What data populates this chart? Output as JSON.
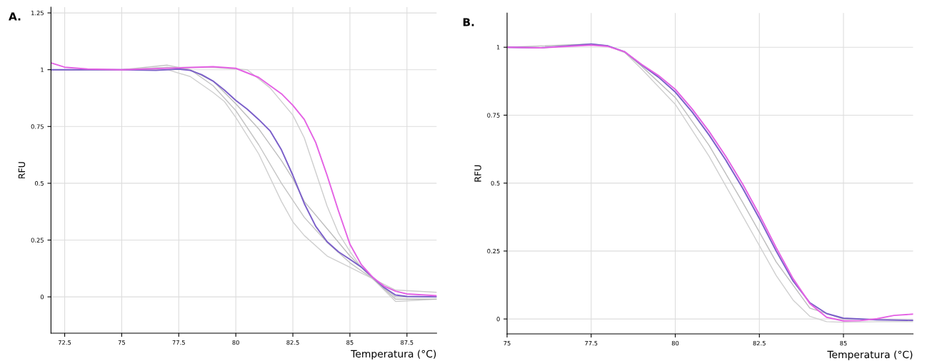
{
  "chart_data": [
    {
      "type": "line",
      "xlabel": "Temperatura (°C)",
      "ylabel": "RFU",
      "annotations": [
        "A."
      ],
      "grid": true,
      "marker": "none",
      "line_style": "solid",
      "legend": false,
      "xlim": [
        71.9,
        88.8
      ],
      "ylim": [
        -0.16,
        1.275
      ],
      "xticks": [
        72.5,
        75,
        77.5,
        80,
        82.5,
        85,
        87.5
      ],
      "yticks": [
        0,
        0.25,
        0.5,
        0.75,
        1,
        1.25
      ],
      "series": [
        {
          "color": "#cfcfcf",
          "x": [
            71.9,
            73,
            75,
            77,
            78,
            79,
            79.5,
            80,
            81,
            82,
            82.5,
            83,
            84,
            85,
            86,
            87,
            88.8
          ],
          "values": [
            1.0,
            1.0,
            1.0,
            1.0,
            0.97,
            0.9,
            0.86,
            0.79,
            0.63,
            0.42,
            0.33,
            0.27,
            0.18,
            0.13,
            0.08,
            -0.02,
            -0.01
          ]
        },
        {
          "color": "#c4c4c4",
          "x": [
            71.9,
            73,
            75,
            77,
            78,
            79,
            80,
            81,
            82,
            83,
            84,
            85,
            86,
            87,
            88.8
          ],
          "values": [
            1.0,
            1.0,
            1.0,
            1.02,
            1.0,
            0.93,
            0.82,
            0.67,
            0.5,
            0.35,
            0.24,
            0.15,
            0.08,
            0.0,
            0.0
          ]
        },
        {
          "color": "#bdbdbd",
          "x": [
            71.9,
            75,
            77,
            78,
            79,
            80,
            81,
            82,
            82.5,
            83,
            84,
            85,
            86,
            87,
            88.8
          ],
          "values": [
            1.0,
            1.0,
            1.01,
            1.0,
            0.95,
            0.85,
            0.74,
            0.6,
            0.52,
            0.42,
            0.3,
            0.18,
            0.08,
            -0.01,
            -0.01
          ]
        },
        {
          "color": "#cdcdcd",
          "x": [
            71.9,
            73,
            75,
            77,
            79,
            80.5,
            81.5,
            82.5,
            83,
            83.5,
            84,
            84.5,
            85,
            85.5,
            86,
            87,
            88.8
          ],
          "values": [
            1.0,
            1.0,
            1.0,
            1.01,
            1.01,
            1.0,
            0.92,
            0.8,
            0.7,
            0.55,
            0.4,
            0.28,
            0.2,
            0.13,
            0.08,
            0.03,
            0.02
          ]
        },
        {
          "color": "#7b5fc9",
          "x": [
            71.9,
            75,
            76.5,
            77.5,
            78,
            78.5,
            79,
            79.5,
            80,
            80.5,
            81,
            81.5,
            82,
            82.5,
            83,
            83.5,
            84,
            84.5,
            85,
            85.5,
            86,
            86.5,
            87,
            87.5,
            88.8
          ],
          "values": [
            1.0,
            1.0,
            0.997,
            1.003,
            0.997,
            0.978,
            0.95,
            0.91,
            0.865,
            0.826,
            0.781,
            0.731,
            0.647,
            0.535,
            0.411,
            0.311,
            0.243,
            0.198,
            0.165,
            0.131,
            0.086,
            0.041,
            0.008,
            0.002,
            0.0
          ]
        },
        {
          "color": "#e462e4",
          "x": [
            71.9,
            72.5,
            73.5,
            75,
            77.5,
            79,
            80,
            81,
            82,
            82.5,
            83,
            83.5,
            84,
            84.5,
            85,
            85.5,
            86,
            86.5,
            87,
            87.5,
            88.8
          ],
          "values": [
            1.03,
            1.011,
            1.003,
            1.0,
            1.008,
            1.013,
            1.006,
            0.966,
            0.894,
            0.843,
            0.781,
            0.68,
            0.535,
            0.378,
            0.232,
            0.142,
            0.086,
            0.047,
            0.025,
            0.013,
            0.005
          ]
        }
      ]
    },
    {
      "type": "line",
      "xlabel": "Temperatura (°C)",
      "ylabel": "RFU",
      "annotations": [
        "B."
      ],
      "grid": true,
      "marker": "none",
      "line_style": "solid",
      "legend": false,
      "xlim": [
        75,
        87.07
      ],
      "ylim": [
        -0.055,
        1.126
      ],
      "xticks": [
        75,
        77.5,
        80,
        82.5,
        85
      ],
      "yticks": [
        0,
        0.25,
        0.5,
        0.75,
        1
      ],
      "series": [
        {
          "color": "#cfcfcf",
          "x": [
            75,
            76,
            77.5,
            78,
            78.5,
            79,
            80,
            81,
            82,
            82.5,
            83,
            83.5,
            84,
            84.5,
            85,
            86,
            87.07
          ],
          "values": [
            1.0,
            0.998,
            1.01,
            1.004,
            0.98,
            0.92,
            0.79,
            0.6,
            0.38,
            0.27,
            0.16,
            0.07,
            0.01,
            -0.01,
            -0.012,
            -0.01,
            -0.01
          ]
        },
        {
          "color": "#bdbdbd",
          "x": [
            75,
            77.5,
            78,
            78.5,
            79,
            80,
            81,
            82,
            83,
            84,
            85,
            87.07
          ],
          "values": [
            1.0,
            1.012,
            1.005,
            0.982,
            0.93,
            0.815,
            0.64,
            0.43,
            0.21,
            0.04,
            0.0,
            -0.005
          ]
        },
        {
          "color": "#7b5fc9",
          "x": [
            75,
            76,
            77.5,
            78,
            78.5,
            79,
            79.5,
            80,
            80.5,
            81,
            81.5,
            82,
            82.5,
            83,
            83.5,
            84,
            84.5,
            85,
            86,
            87.07
          ],
          "values": [
            1.0,
            0.998,
            1.012,
            1.005,
            0.983,
            0.935,
            0.89,
            0.835,
            0.762,
            0.678,
            0.585,
            0.482,
            0.37,
            0.25,
            0.14,
            0.06,
            0.02,
            0.003,
            -0.003,
            -0.005
          ]
        },
        {
          "color": "#e462e4",
          "x": [
            75,
            76,
            77.5,
            78,
            78.5,
            79,
            79.5,
            80,
            80.5,
            81,
            81.5,
            82,
            82.5,
            83,
            83.5,
            84,
            84.5,
            85,
            85.5,
            86,
            86.5,
            87.07
          ],
          "values": [
            1.0,
            0.998,
            1.008,
            1.003,
            0.983,
            0.937,
            0.896,
            0.845,
            0.773,
            0.691,
            0.599,
            0.497,
            0.384,
            0.262,
            0.149,
            0.057,
            0.006,
            -0.007,
            -0.006,
            0.001,
            0.013,
            0.018
          ]
        }
      ]
    }
  ]
}
